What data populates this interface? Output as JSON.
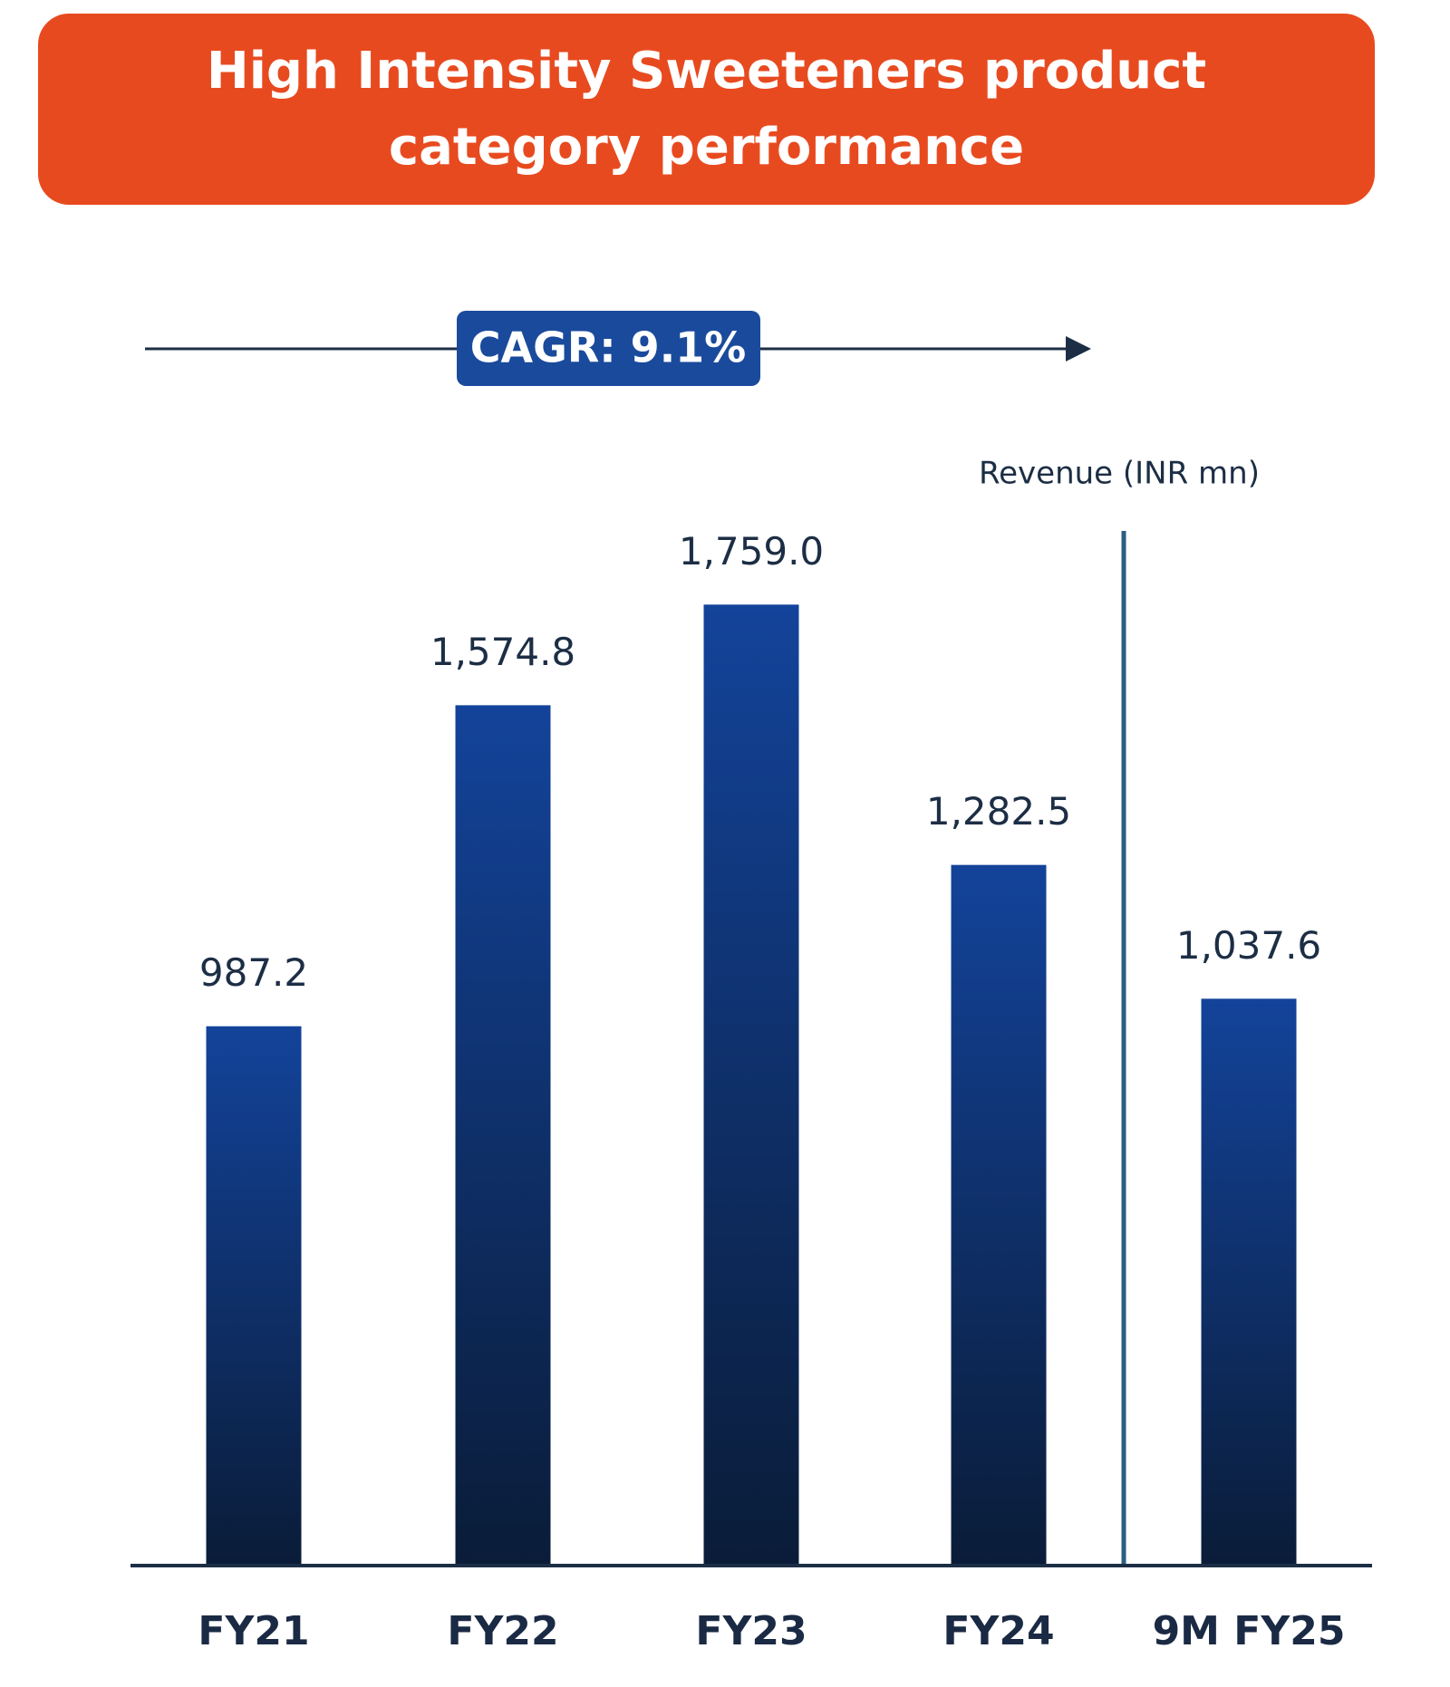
{
  "chart_data": {
    "type": "bar",
    "title": "High Intensity Sweeteners product category performance",
    "annotation": "CAGR: 9.1%",
    "ylabel": "Revenue (INR mn)",
    "categories": [
      "FY21",
      "FY22",
      "FY23",
      "FY24",
      "9M FY25"
    ],
    "values": [
      987.2,
      1574.8,
      1759.0,
      1282.5,
      1037.6
    ],
    "value_labels": [
      "987.2",
      "1,574.8",
      "1,759.0",
      "1,282.5",
      "1,037.6"
    ],
    "color": "#13439a"
  }
}
